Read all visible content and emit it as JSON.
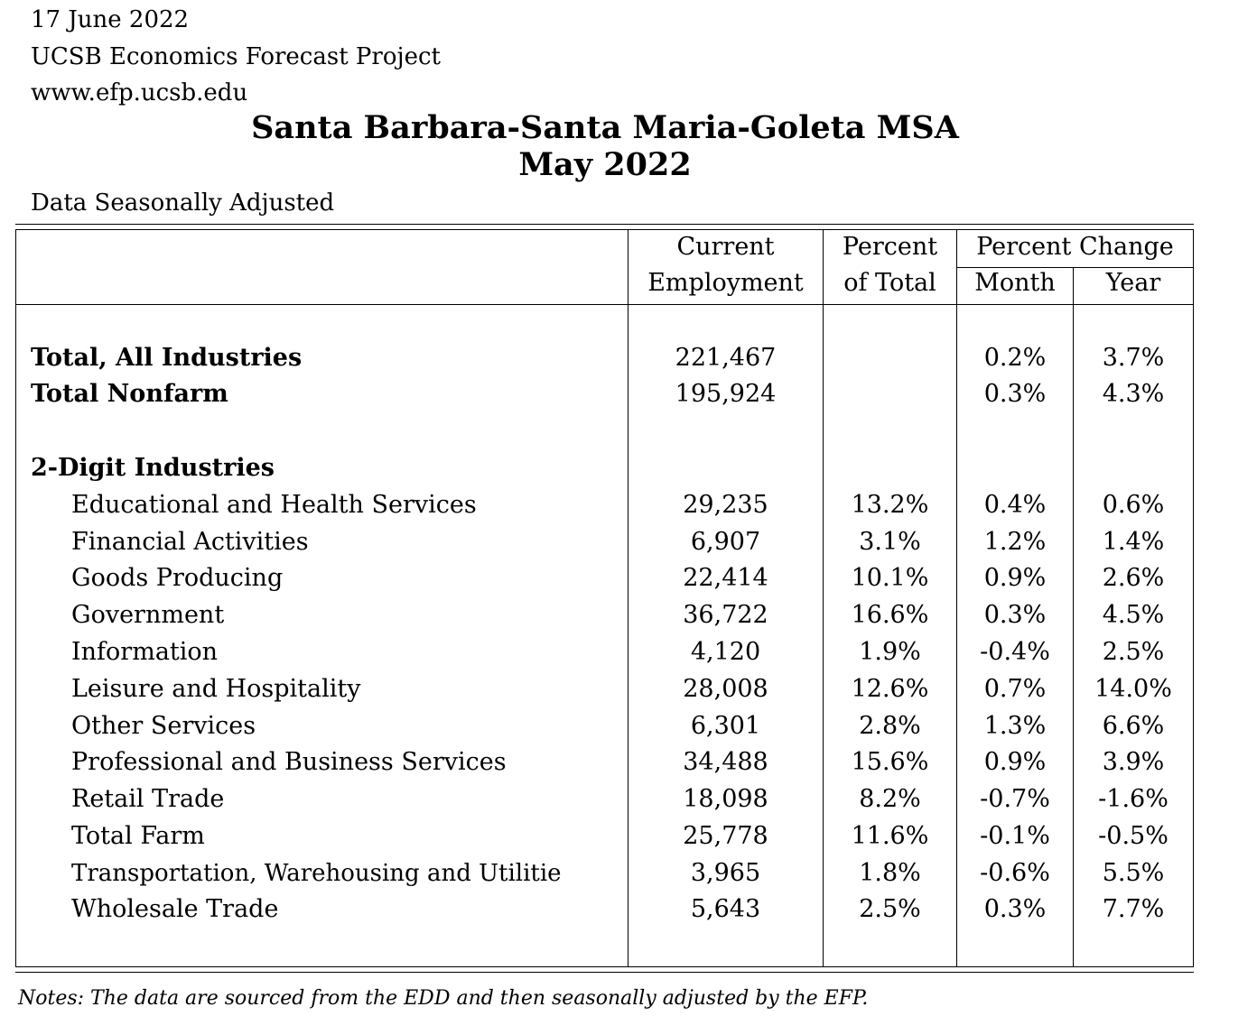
{
  "header": {
    "date": "17 June 2022",
    "organization": "UCSB Economics Forecast Project",
    "website": "www.efp.ucsb.edu"
  },
  "title": {
    "line1": "Santa Barbara-Santa Maria-Goleta MSA",
    "line2": "May 2022"
  },
  "subtitle": "Data Seasonally Adjusted",
  "columns": {
    "employment_line1": "Current",
    "employment_line2": "Employment",
    "percent_total_line1": "Percent",
    "percent_total_line2": "of Total",
    "percent_change": "Percent Change",
    "month": "Month",
    "year": "Year"
  },
  "totals": [
    {
      "label": "Total, All Industries",
      "employment": "221,467",
      "pct_total": "",
      "month": "0.2%",
      "year": "3.7%"
    },
    {
      "label": "Total Nonfarm",
      "employment": "195,924",
      "pct_total": "",
      "month": "0.3%",
      "year": "4.3%"
    }
  ],
  "section_label": "2-Digit Industries",
  "industries": [
    {
      "label": "Educational and Health Services",
      "employment": "29,235",
      "pct_total": "13.2%",
      "month": "0.4%",
      "year": "0.6%"
    },
    {
      "label": "Financial Activities",
      "employment": "6,907",
      "pct_total": "3.1%",
      "month": "1.2%",
      "year": "1.4%"
    },
    {
      "label": "Goods Producing",
      "employment": "22,414",
      "pct_total": "10.1%",
      "month": "0.9%",
      "year": "2.6%"
    },
    {
      "label": "Government",
      "employment": "36,722",
      "pct_total": "16.6%",
      "month": "0.3%",
      "year": "4.5%"
    },
    {
      "label": "Information",
      "employment": "4,120",
      "pct_total": "1.9%",
      "month": "-0.4%",
      "year": "2.5%"
    },
    {
      "label": "Leisure and Hospitality",
      "employment": "28,008",
      "pct_total": "12.6%",
      "month": "0.7%",
      "year": "14.0%"
    },
    {
      "label": "Other Services",
      "employment": "6,301",
      "pct_total": "2.8%",
      "month": "1.3%",
      "year": "6.6%"
    },
    {
      "label": "Professional and Business Services",
      "employment": "34,488",
      "pct_total": "15.6%",
      "month": "0.9%",
      "year": "3.9%"
    },
    {
      "label": "Retail Trade",
      "employment": "18,098",
      "pct_total": "8.2%",
      "month": "-0.7%",
      "year": "-1.6%"
    },
    {
      "label": "Total Farm",
      "employment": "25,778",
      "pct_total": "11.6%",
      "month": "-0.1%",
      "year": "-0.5%"
    },
    {
      "label": "Transportation, Warehousing and Utilitie",
      "employment": "3,965",
      "pct_total": "1.8%",
      "month": "-0.6%",
      "year": "5.5%"
    },
    {
      "label": "Wholesale Trade",
      "employment": "5,643",
      "pct_total": "2.5%",
      "month": "0.3%",
      "year": "7.7%"
    }
  ],
  "notes": "Notes: The data are sourced from the EDD and then seasonally adjusted by the EFP."
}
